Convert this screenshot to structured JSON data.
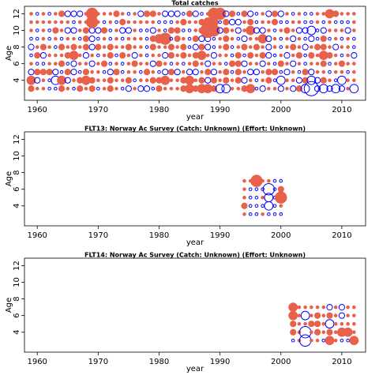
{
  "chart_data": [
    {
      "type": "bubble",
      "title": "Total catches",
      "x_label": "year",
      "y_label": "Age",
      "positive_color": "#e8614b",
      "negative_color": "#0000ff",
      "x": [
        1959,
        1960,
        1961,
        1962,
        1963,
        1964,
        1965,
        1966,
        1967,
        1968,
        1969,
        1970,
        1971,
        1972,
        1973,
        1974,
        1975,
        1976,
        1977,
        1978,
        1979,
        1980,
        1981,
        1982,
        1983,
        1984,
        1985,
        1986,
        1987,
        1988,
        1989,
        1990,
        1991,
        1992,
        1993,
        1994,
        1995,
        1996,
        1997,
        1998,
        1999,
        2000,
        2001,
        2002,
        2003,
        2004,
        2005,
        2006,
        2007,
        2008,
        2009,
        2010,
        2011,
        2012
      ],
      "ages": [
        3,
        4,
        5,
        6,
        7,
        8,
        9,
        10,
        11,
        12
      ],
      "residuals": [
        [
          2,
          1,
          1,
          -1,
          -1,
          2,
          1,
          -1,
          2,
          1,
          2,
          -1,
          1,
          2,
          1,
          -1,
          -2,
          1,
          -2,
          -2,
          -1,
          2,
          1,
          1,
          1,
          2,
          3,
          2,
          3,
          3,
          2,
          -3,
          -3,
          1,
          1,
          2,
          3,
          -1,
          -2,
          1,
          1,
          -2,
          1,
          -2,
          2,
          -3,
          -5,
          -2,
          -3,
          -2,
          -3,
          -2,
          1,
          -3
        ],
        [
          3,
          -2,
          1,
          -1,
          -3,
          3,
          -2,
          1,
          2,
          3,
          2,
          1,
          1,
          2,
          1,
          1,
          2,
          -1,
          1,
          1,
          2,
          2,
          3,
          1,
          1,
          2,
          3,
          1,
          2,
          -2,
          2,
          1,
          2,
          1,
          2,
          -2,
          1,
          -1,
          1,
          2,
          -1,
          -3,
          1,
          1,
          -2,
          2,
          -3,
          -2,
          2,
          1,
          -1,
          -3,
          1,
          1
        ],
        [
          -2,
          2,
          2,
          2,
          -2,
          -1,
          2,
          -2,
          -1,
          2,
          1,
          1,
          -1,
          -2,
          2,
          -1,
          1,
          1,
          -1,
          2,
          1,
          -1,
          -2,
          2,
          -2,
          1,
          -2,
          -2,
          1,
          2,
          -2,
          1,
          2,
          -1,
          2,
          1,
          -2,
          -2,
          1,
          2,
          2,
          -1,
          -2,
          1,
          -1,
          2,
          -2,
          1,
          1,
          -1,
          1,
          1,
          -1,
          1
        ],
        [
          1,
          -1,
          -1,
          1,
          1,
          2,
          -1,
          -2,
          1,
          1,
          -2,
          1,
          2,
          -1,
          1,
          -1,
          1,
          2,
          1,
          1,
          -2,
          2,
          1,
          -1,
          1,
          -1,
          1,
          2,
          1,
          -2,
          1,
          1,
          -1,
          2,
          2,
          -2,
          1,
          1,
          -2,
          1,
          -1,
          2,
          1,
          -2,
          1,
          -1,
          1,
          1,
          2,
          -1,
          1,
          2,
          1,
          1
        ],
        [
          -1,
          2,
          -2,
          1,
          1,
          1,
          2,
          3,
          1,
          -2,
          1,
          -1,
          1,
          2,
          -1,
          2,
          1,
          -2,
          1,
          -1,
          1,
          1,
          -2,
          2,
          1,
          2,
          1,
          2,
          3,
          1,
          -2,
          1,
          1,
          -1,
          2,
          -1,
          2,
          1,
          2,
          -2,
          -1,
          1,
          -2,
          1,
          2,
          -1,
          2,
          1,
          3,
          2,
          1,
          -1,
          1,
          -2
        ],
        [
          -2,
          1,
          2,
          1,
          -1,
          2,
          1,
          2,
          1,
          2,
          -2,
          2,
          1,
          2,
          1,
          1,
          2,
          1,
          1,
          -1,
          2,
          1,
          1,
          2,
          1,
          2,
          -1,
          -2,
          2,
          -2,
          -1,
          1,
          2,
          -1,
          1,
          2,
          1,
          2,
          1,
          -2,
          1,
          -1,
          1,
          2,
          1,
          -2,
          1,
          2,
          2,
          1,
          -2,
          1,
          1,
          -1
        ],
        [
          -1,
          -1,
          1,
          -1,
          1,
          -1,
          1,
          1,
          -1,
          2,
          -2,
          -1,
          1,
          -1,
          1,
          -1,
          1,
          1,
          1,
          -1,
          2,
          3,
          4,
          -1,
          2,
          1,
          -1,
          2,
          -2,
          -2,
          -1,
          1,
          2,
          1,
          -1,
          -2,
          1,
          1,
          3,
          -2,
          1,
          -1,
          1,
          -2,
          1,
          -1,
          -2,
          -1,
          2,
          -1,
          1,
          -1,
          1,
          -1
        ],
        [
          1,
          -1,
          1,
          -1,
          2,
          1,
          -2,
          -2,
          1,
          2,
          -2,
          -2,
          2,
          -1,
          1,
          -2,
          -2,
          1,
          -1,
          -1,
          -2,
          1,
          -1,
          2,
          2,
          -1,
          -1,
          1,
          2,
          5,
          4,
          -2,
          2,
          1,
          -2,
          1,
          3,
          -2,
          -2,
          1,
          -1,
          1,
          2,
          1,
          -2,
          -2,
          -3,
          -1,
          -2,
          1,
          1,
          1,
          -2,
          1
        ],
        [
          1,
          1,
          1,
          1,
          1,
          1,
          1,
          -1,
          1,
          1,
          4,
          1,
          -1,
          1,
          -1,
          2,
          1,
          1,
          1,
          1,
          1,
          -1,
          -1,
          -1,
          1,
          2,
          1,
          1,
          2,
          3,
          3,
          -1,
          2,
          -2,
          -2,
          1,
          2,
          -1,
          1,
          1,
          2,
          -1,
          -1,
          1,
          1,
          -1,
          -1,
          1,
          -1,
          1,
          -1,
          -1,
          -1,
          1
        ],
        [
          1,
          -1,
          1,
          -1,
          1,
          2,
          -2,
          -2,
          -2,
          1,
          4,
          1,
          1,
          1,
          2,
          1,
          -1,
          1,
          -2,
          2,
          2,
          1,
          -2,
          -2,
          -2,
          -1,
          2,
          -2,
          -1,
          1,
          4,
          4,
          -2,
          2,
          -1,
          2,
          -2,
          -1,
          1,
          -2,
          2,
          -2,
          1,
          -1,
          1,
          -1,
          -1,
          1,
          1,
          3,
          2,
          1,
          1,
          1
        ]
      ],
      "xlim": [
        1957.9,
        2013.9
      ],
      "xticks": [
        1960,
        1970,
        1980,
        1990,
        2000,
        2010
      ],
      "ylim": [
        1.6,
        12.9
      ],
      "yticks": [
        4,
        6,
        8,
        10,
        12
      ]
    },
    {
      "type": "bubble",
      "title": "FLT13: Norway Ac Survey (Catch: Unknown) (Effort: Unknown)",
      "x_label": "year",
      "y_label": "Age",
      "positive_color": "#e8614b",
      "negative_color": "#0000ff",
      "x": [
        1994,
        1995,
        1996,
        1997,
        1998,
        1999,
        2000
      ],
      "ages": [
        3,
        4,
        5,
        6,
        7
      ],
      "residuals": [
        [
          1,
          -1,
          -1,
          1,
          -1,
          -1,
          -1
        ],
        [
          2,
          -1,
          -1,
          -1,
          -3,
          -1,
          1
        ],
        [
          1,
          -1,
          -1,
          1,
          -3,
          -1,
          4
        ],
        [
          1,
          -1,
          -1,
          -1,
          -4,
          -1,
          2
        ],
        [
          1,
          1,
          4,
          1,
          1,
          -1,
          -1
        ]
      ],
      "xlim": [
        1957.9,
        2013.9
      ],
      "xticks": [
        1960,
        1970,
        1980,
        1990,
        2000,
        2010
      ],
      "ylim": [
        1.6,
        12.9
      ],
      "yticks": [
        4,
        6,
        8,
        10,
        12
      ]
    },
    {
      "type": "bubble",
      "title": "FLT14: Norway Ac Survey (Catch: Unknown) (Effort: Unknown)",
      "x_label": "year",
      "y_label": "Age",
      "positive_color": "#e8614b",
      "negative_color": "#0000ff",
      "x": [
        2002,
        2003,
        2004,
        2005,
        2006,
        2007,
        2008,
        2009,
        2010,
        2011,
        2012
      ],
      "ages": [
        3,
        4,
        5,
        6,
        7
      ],
      "residuals": [
        [
          -1,
          1,
          -4,
          1,
          1,
          -1,
          3,
          1,
          -1,
          -1,
          3
        ],
        [
          2,
          1,
          -4,
          1,
          2,
          1,
          2,
          1,
          3,
          3,
          1
        ],
        [
          2,
          1,
          1,
          2,
          2,
          1,
          -3,
          1,
          1,
          1,
          1
        ],
        [
          3,
          1,
          -3,
          1,
          2,
          1,
          2,
          1,
          -2,
          1,
          1
        ],
        [
          3,
          1,
          1,
          1,
          1,
          1,
          -2,
          1,
          -2,
          1,
          1
        ]
      ],
      "xlim": [
        1957.9,
        2013.9
      ],
      "xticks": [
        1960,
        1970,
        1980,
        1990,
        2000,
        2010
      ],
      "ylim": [
        1.6,
        12.9
      ],
      "yticks": [
        4,
        6,
        8,
        10,
        12
      ]
    }
  ]
}
